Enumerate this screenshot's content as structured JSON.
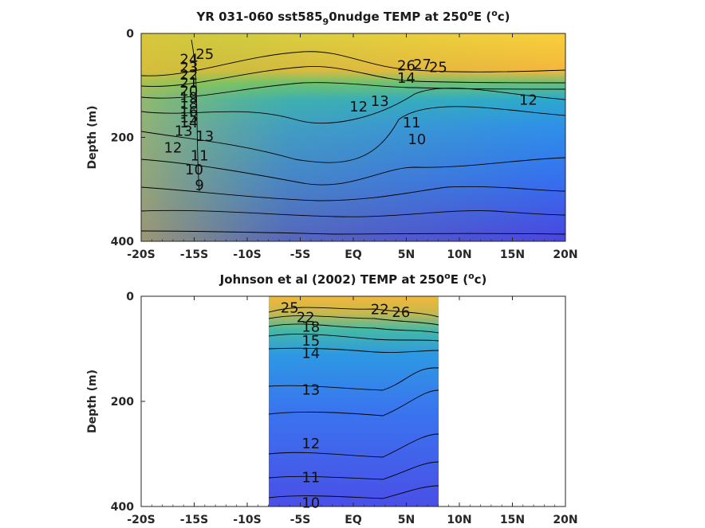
{
  "chart_data": [
    {
      "type": "heatmap",
      "title_main": "YR 031-060 sst585",
      "title_sub": "9",
      "title_rest": "0nudge TEMP at 250",
      "title_sup": "o",
      "title_after": "E (",
      "title_unit_sup": "o",
      "title_unit": "c)",
      "ylabel": "Depth (m)",
      "xlim": [
        -20,
        20
      ],
      "ylim": [
        400,
        0
      ],
      "xticks": [
        -20,
        -15,
        -10,
        -5,
        0,
        5,
        10,
        15,
        20
      ],
      "xtick_labels": [
        "-20S",
        "-15S",
        "-10S",
        "-5S",
        "EQ",
        "5N",
        "10N",
        "15N",
        "20N"
      ],
      "yticks": [
        0,
        200,
        400
      ],
      "ytick_labels": [
        "0",
        "200",
        "400"
      ],
      "data_x_range": [
        -20,
        20
      ],
      "contour_labels": [
        {
          "text": "25",
          "x": -14.0,
          "depth": 40
        },
        {
          "text": "24",
          "x": -15.5,
          "depth": 50
        },
        {
          "text": "23",
          "x": -15.5,
          "depth": 65
        },
        {
          "text": "22",
          "x": -15.5,
          "depth": 80
        },
        {
          "text": "21",
          "x": -15.5,
          "depth": 95
        },
        {
          "text": "20",
          "x": -15.5,
          "depth": 110
        },
        {
          "text": "19",
          "x": -15.5,
          "depth": 123
        },
        {
          "text": "18",
          "x": -15.5,
          "depth": 136
        },
        {
          "text": "16",
          "x": -15.5,
          "depth": 150
        },
        {
          "text": "15",
          "x": -15.5,
          "depth": 162
        },
        {
          "text": "14",
          "x": -15.5,
          "depth": 172
        },
        {
          "text": "13",
          "x": -16.0,
          "depth": 188
        },
        {
          "text": "13",
          "x": -14.0,
          "depth": 198
        },
        {
          "text": "12",
          "x": -17.0,
          "depth": 220
        },
        {
          "text": "11",
          "x": -14.5,
          "depth": 235
        },
        {
          "text": "10",
          "x": -15.0,
          "depth": 262
        },
        {
          "text": "9",
          "x": -14.5,
          "depth": 292
        },
        {
          "text": "13",
          "x": 2.5,
          "depth": 130
        },
        {
          "text": "12",
          "x": 0.5,
          "depth": 141
        },
        {
          "text": "11",
          "x": 5.5,
          "depth": 172
        },
        {
          "text": "10",
          "x": 6.0,
          "depth": 204
        },
        {
          "text": "12",
          "x": 16.5,
          "depth": 128
        },
        {
          "text": "26",
          "x": 5.0,
          "depth": 62
        },
        {
          "text": "27",
          "x": 6.5,
          "depth": 60
        },
        {
          "text": "25",
          "x": 8.0,
          "depth": 65
        },
        {
          "text": "14",
          "x": 5.0,
          "depth": 86
        }
      ]
    },
    {
      "type": "heatmap",
      "title_main": "Johnson et al (2002) TEMP at 250",
      "title_sup": "o",
      "title_after": "E (",
      "title_unit_sup": "o",
      "title_unit": "c)",
      "ylabel": "Depth (m)",
      "xlim": [
        -20,
        20
      ],
      "ylim": [
        400,
        0
      ],
      "xticks": [
        -20,
        -15,
        -10,
        -5,
        0,
        5,
        10,
        15,
        20
      ],
      "xtick_labels": [
        "-20S",
        "-15S",
        "-10S",
        "-5S",
        "EQ",
        "5N",
        "10N",
        "15N",
        "20N"
      ],
      "yticks": [
        0,
        200,
        400
      ],
      "ytick_labels": [
        "0",
        "200",
        "400"
      ],
      "data_x_range": [
        -8,
        8
      ],
      "contour_labels": [
        {
          "text": "25",
          "x": -6.0,
          "depth": 22
        },
        {
          "text": "22",
          "x": -4.5,
          "depth": 40
        },
        {
          "text": "18",
          "x": -4.0,
          "depth": 58
        },
        {
          "text": "15",
          "x": -4.0,
          "depth": 85
        },
        {
          "text": "14",
          "x": -4.0,
          "depth": 108
        },
        {
          "text": "13",
          "x": -4.0,
          "depth": 178
        },
        {
          "text": "12",
          "x": -4.0,
          "depth": 280
        },
        {
          "text": "11",
          "x": -4.0,
          "depth": 345
        },
        {
          "text": "10",
          "x": -4.0,
          "depth": 393
        },
        {
          "text": "22",
          "x": 2.5,
          "depth": 25
        },
        {
          "text": "26",
          "x": 4.5,
          "depth": 30
        }
      ]
    }
  ]
}
